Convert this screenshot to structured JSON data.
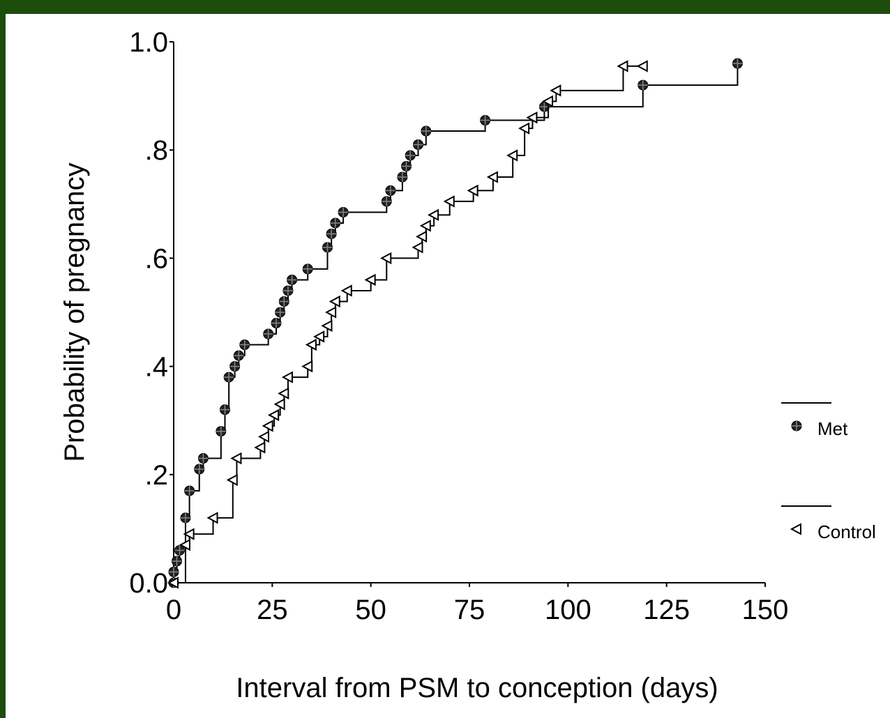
{
  "chart_data": {
    "type": "step",
    "x_label": "Interval from PSM to conception (days)",
    "y_label": "Probability of pregnancy",
    "xlim": [
      0,
      150
    ],
    "xticks": [
      0,
      25,
      50,
      75,
      100,
      125,
      150
    ],
    "ylim": [
      0,
      1
    ],
    "yticks": [
      {
        "value": 0,
        "label": "0.0"
      },
      {
        "value": 0.2,
        "label": ".2"
      },
      {
        "value": 0.4,
        "label": ".4"
      },
      {
        "value": 0.6,
        "label": ".6"
      },
      {
        "value": 0.8,
        "label": ".8"
      },
      {
        "value": 1,
        "label": "1.0"
      }
    ],
    "series": [
      {
        "name": "Met",
        "color": "#000000",
        "marker": "circle",
        "x": [
          0,
          0,
          0.8,
          1.5,
          3,
          4,
          6.5,
          7.5,
          12,
          13,
          14,
          15.5,
          16.5,
          18,
          24,
          26,
          27,
          28,
          29,
          30,
          34,
          39,
          40,
          41,
          43,
          54,
          55,
          58,
          59,
          60,
          62,
          64,
          79,
          94,
          119,
          143
        ],
        "values": [
          0,
          0.02,
          0.04,
          0.06,
          0.12,
          0.17,
          0.21,
          0.23,
          0.28,
          0.32,
          0.38,
          0.4,
          0.42,
          0.44,
          0.46,
          0.48,
          0.5,
          0.52,
          0.54,
          0.56,
          0.58,
          0.62,
          0.645,
          0.665,
          0.685,
          0.705,
          0.725,
          0.75,
          0.77,
          0.79,
          0.81,
          0.835,
          0.855,
          0.88,
          0.92,
          0.96
        ]
      },
      {
        "name": "Control",
        "color": "#000000",
        "marker": "triangle",
        "x": [
          0,
          3,
          4,
          10,
          15,
          16,
          22,
          23,
          24,
          25.5,
          27,
          28,
          29,
          34,
          35,
          37,
          39,
          40,
          41,
          44,
          50,
          54,
          62,
          63,
          64,
          66,
          70,
          76,
          81,
          86,
          89,
          91,
          95,
          97,
          114,
          119
        ],
        "values": [
          0,
          0.07,
          0.09,
          0.12,
          0.19,
          0.23,
          0.25,
          0.27,
          0.29,
          0.31,
          0.33,
          0.35,
          0.38,
          0.4,
          0.44,
          0.455,
          0.475,
          0.5,
          0.52,
          0.54,
          0.56,
          0.6,
          0.62,
          0.64,
          0.66,
          0.68,
          0.705,
          0.725,
          0.75,
          0.79,
          0.84,
          0.86,
          0.89,
          0.91,
          0.955,
          0.955
        ]
      }
    ]
  }
}
